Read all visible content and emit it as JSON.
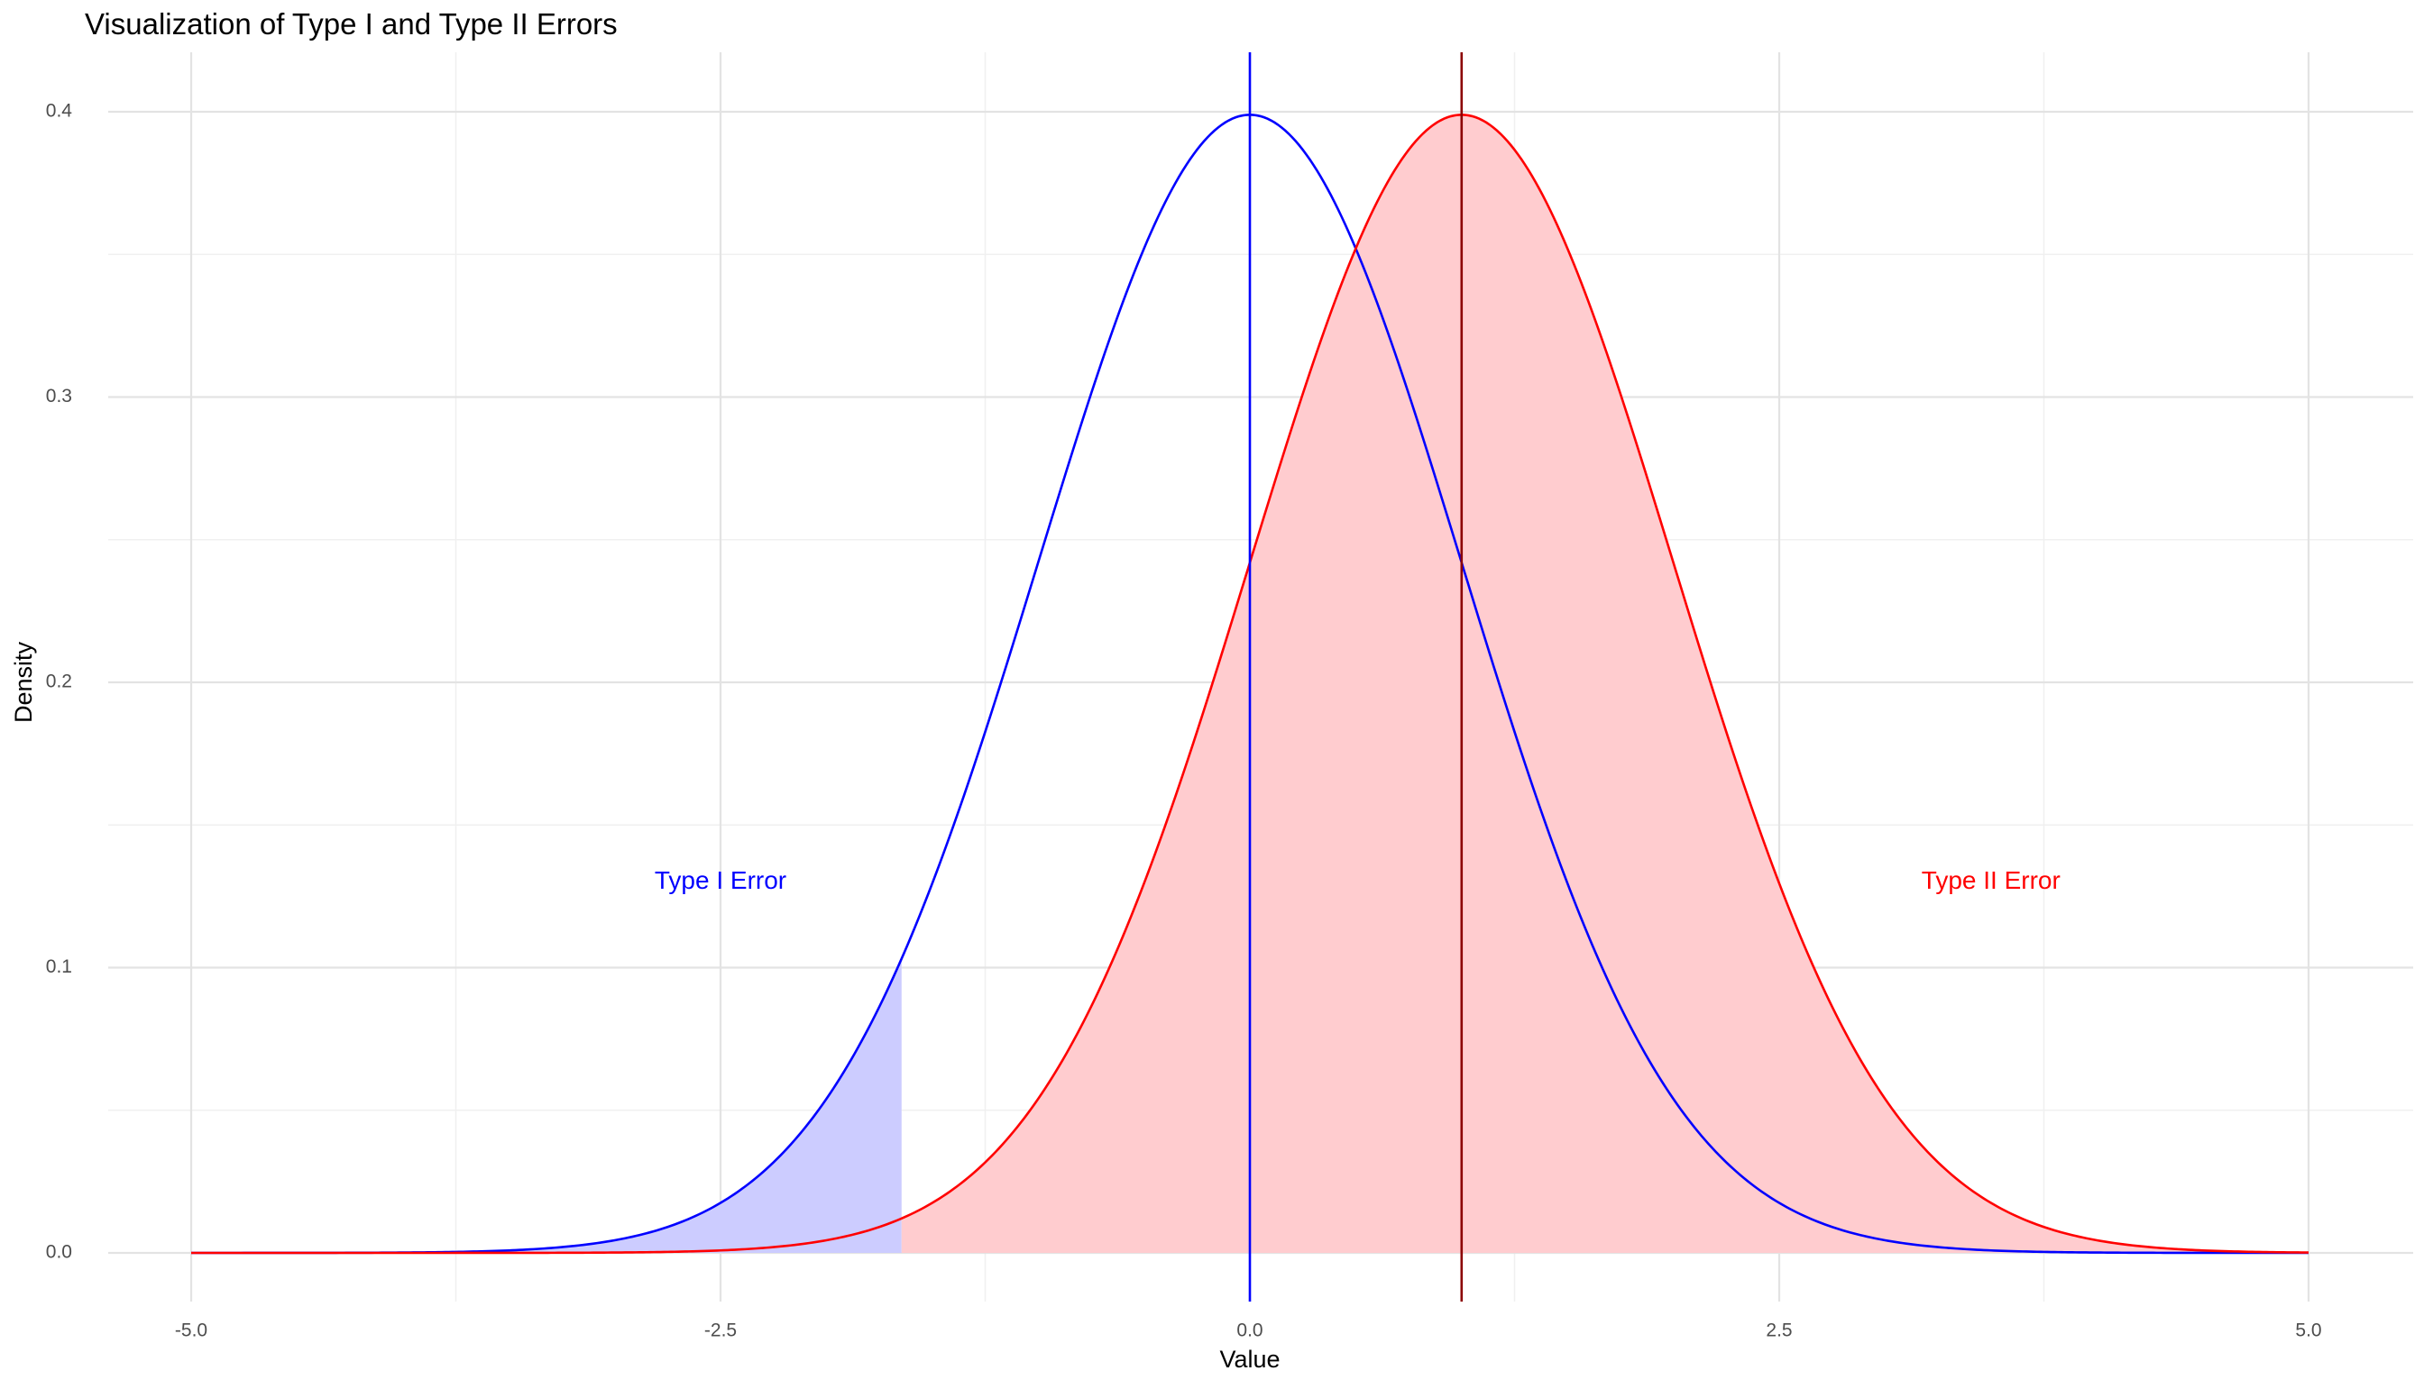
{
  "chart_data": {
    "type": "line",
    "title": "Visualization of Type I and Type II Errors",
    "xlabel": "Value",
    "ylabel": "Density",
    "xlim": [
      -5.0,
      5.0
    ],
    "ylim": [
      0.0,
      0.4
    ],
    "x_ticks": [
      -5.0,
      -2.5,
      0.0,
      2.5,
      5.0
    ],
    "x_tick_labels": [
      "-5.0",
      "-2.5",
      "0.0",
      "2.5",
      "5.0"
    ],
    "y_ticks": [
      0.0,
      0.1,
      0.2,
      0.3,
      0.4
    ],
    "y_tick_labels": [
      "0.0",
      "0.1",
      "0.2",
      "0.3",
      "0.4"
    ],
    "grid": true,
    "legend": "none",
    "series": [
      {
        "mean": 0,
        "sd": 1,
        "color": "#0000FF"
      },
      {
        "mean": 1,
        "sd": 1,
        "color": "#FF0000"
      }
    ],
    "shaded_regions": [
      {
        "series_index": 0,
        "x_from": -5.0,
        "x_to": -1.645,
        "fill": "#CCCCFF"
      },
      {
        "series_index": 1,
        "x_from": -1.645,
        "x_to": 5.0,
        "fill": "#FFCCCF"
      }
    ],
    "vlines": [
      {
        "x": 0.0,
        "color": "#0000FF"
      },
      {
        "x": 1.0,
        "color": "#8B0000"
      }
    ],
    "annotations": [
      {
        "text": "Type I Error",
        "x": -2.5,
        "y": 0.13,
        "color": "#0000FF"
      },
      {
        "text": "Type II Error",
        "x": 3.5,
        "y": 0.13,
        "color": "#FF0000"
      }
    ]
  }
}
